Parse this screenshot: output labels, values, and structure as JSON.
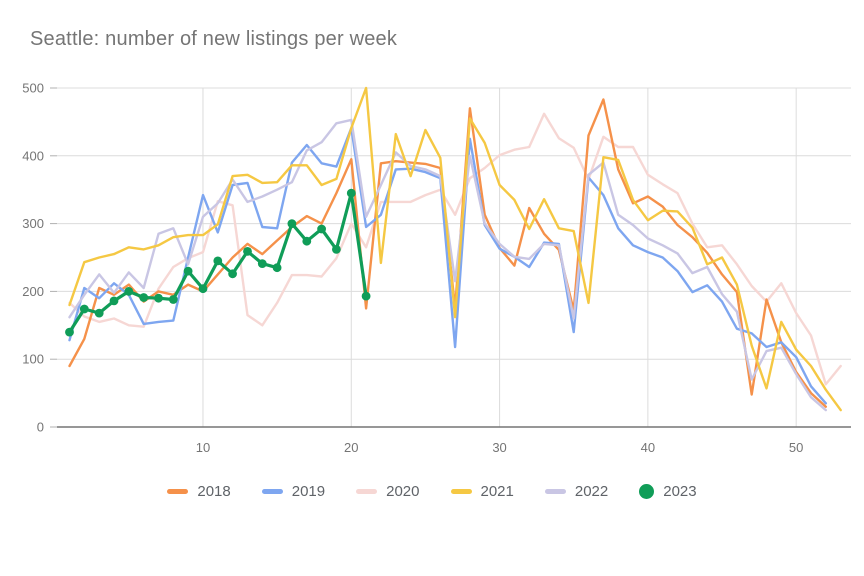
{
  "title": "Seattle: number of new listings per week",
  "style": {
    "background": "#ffffff",
    "title_color": "#757575",
    "axis_label_color": "#757575",
    "grid_color": "#dcdcdc",
    "baseline_color": "#757575",
    "tick_color": "#b0b0b0",
    "legend_text_color": "#5f6368"
  },
  "axes": {
    "y_tick_labels": [
      "0",
      "100",
      "200",
      "300",
      "400",
      "500"
    ],
    "y_tick_values": [
      0,
      100,
      200,
      300,
      400,
      500
    ],
    "x_tick_labels": [
      "10",
      "20",
      "30",
      "40",
      "50"
    ],
    "x_tick_values": [
      10,
      20,
      30,
      40,
      50
    ]
  },
  "legend_items": [
    "2018",
    "2019",
    "2020",
    "2021",
    "2022",
    "2023"
  ],
  "chart_data": {
    "type": "line",
    "title": "Seattle: number of new listings per week",
    "xlabel": "",
    "ylabel": "",
    "x_unit": "week of year",
    "x_start": 1,
    "x_end": 53,
    "ylim": [
      0,
      500
    ],
    "grid": true,
    "legend_position": "bottom",
    "series": [
      {
        "name": "2020",
        "color": "#f6d7d4",
        "marker": "none",
        "values": [
          183,
          163,
          155,
          160,
          150,
          148,
          204,
          236,
          249,
          258,
          333,
          327,
          165,
          150,
          183,
          224,
          224,
          222,
          249,
          300,
          265,
          332,
          332,
          332,
          342,
          350,
          313,
          367,
          382,
          401,
          409,
          413,
          462,
          426,
          412,
          365,
          428,
          413,
          413,
          372,
          358,
          345,
          300,
          265,
          268,
          240,
          208,
          185,
          212,
          168,
          135,
          63,
          90
        ]
      },
      {
        "name": "2018",
        "color": "#f5914a",
        "marker": "none",
        "values": [
          90,
          130,
          205,
          195,
          210,
          185,
          200,
          195,
          210,
          200,
          225,
          250,
          270,
          255,
          275,
          295,
          311,
          300,
          345,
          395,
          175,
          389,
          392,
          390,
          388,
          382,
          175,
          470,
          313,
          264,
          238,
          323,
          285,
          261,
          172,
          430,
          483,
          380,
          330,
          340,
          325,
          298,
          280,
          257,
          225,
          199,
          48,
          188,
          125,
          81,
          50,
          30,
          null
        ]
      },
      {
        "name": "2019",
        "color": "#7ea6f0",
        "marker": "none",
        "values": [
          128,
          205,
          190,
          212,
          195,
          152,
          155,
          157,
          250,
          342,
          287,
          357,
          360,
          295,
          293,
          390,
          416,
          389,
          384,
          441,
          295,
          313,
          380,
          381,
          376,
          367,
          118,
          425,
          298,
          263,
          251,
          236,
          272,
          270,
          140,
          368,
          342,
          293,
          268,
          258,
          250,
          230,
          199,
          209,
          185,
          145,
          138,
          118,
          125,
          103,
          60,
          35,
          null
        ]
      },
      {
        "name": "2022",
        "color": "#c9c6e4",
        "marker": "none",
        "values": [
          162,
          195,
          225,
          198,
          228,
          205,
          285,
          293,
          240,
          310,
          330,
          365,
          332,
          340,
          350,
          361,
          408,
          420,
          448,
          453,
          310,
          357,
          405,
          385,
          380,
          370,
          215,
          400,
          300,
          270,
          251,
          248,
          270,
          268,
          160,
          372,
          390,
          313,
          298,
          278,
          268,
          256,
          227,
          236,
          196,
          170,
          70,
          112,
          117,
          78,
          44,
          25,
          null
        ]
      },
      {
        "name": "2021",
        "color": "#f5c843",
        "marker": "none",
        "values": [
          180,
          243,
          250,
          255,
          265,
          262,
          268,
          280,
          283,
          283,
          299,
          370,
          372,
          360,
          361,
          386,
          386,
          357,
          366,
          441,
          500,
          242,
          432,
          370,
          438,
          397,
          162,
          455,
          419,
          357,
          335,
          292,
          336,
          293,
          289,
          183,
          398,
          394,
          335,
          305,
          319,
          318,
          294,
          240,
          250,
          210,
          120,
          57,
          155,
          114,
          90,
          55,
          25
        ]
      },
      {
        "name": "2023",
        "color": "#109d58",
        "marker": "circle",
        "values": [
          140,
          174,
          168,
          186,
          200,
          191,
          190,
          188,
          230,
          204,
          245,
          226,
          259,
          241,
          235,
          300,
          274,
          292,
          262,
          345,
          193
        ]
      }
    ]
  }
}
